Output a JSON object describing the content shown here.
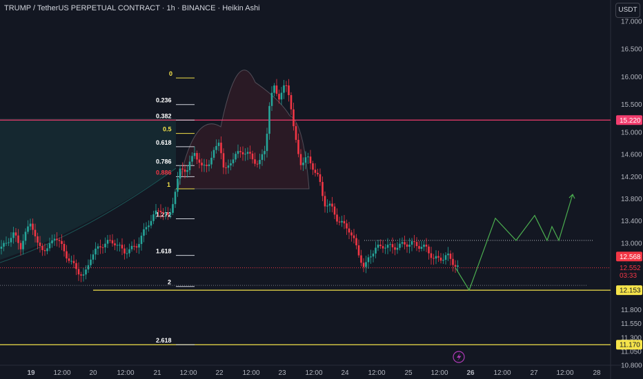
{
  "header": {
    "title": "TRUMP / TetherUS PERPETUAL CONTRACT · 1h · BINANCE · Heikin Ashi"
  },
  "currency": "USDT",
  "colors": {
    "background": "#131722",
    "up": "#26a69a",
    "down": "#f23645",
    "fib": "#f5e34a",
    "projection": "#4caf50",
    "resistance": "#f23d6e"
  },
  "chart_data": {
    "type": "candlestick",
    "ylim": [
      10.8,
      17.25
    ],
    "y_ticks": [
      17.0,
      16.5,
      16.0,
      15.5,
      15.0,
      14.6,
      14.2,
      13.8,
      13.4,
      13.0,
      12.6,
      12.2,
      11.8,
      11.55,
      11.3,
      11.05,
      10.8
    ],
    "y_tick_labels": [
      "17.000",
      "16.500",
      "16.000",
      "15.500",
      "15.000",
      "14.600",
      "14.200",
      "13.800",
      "13.400",
      "13.000",
      "12.600",
      "12.200",
      "11.800",
      "11.550",
      "11.300",
      "11.050",
      "10.800"
    ],
    "x_ticks": [
      {
        "label": "19",
        "bold": true,
        "x": 45
      },
      {
        "label": "12:00",
        "x": 90
      },
      {
        "label": "20",
        "x": 135
      },
      {
        "label": "12:00",
        "x": 182
      },
      {
        "label": "21",
        "x": 228
      },
      {
        "label": "12:00",
        "x": 273
      },
      {
        "label": "22",
        "x": 318
      },
      {
        "label": "12:00",
        "x": 364
      },
      {
        "label": "23",
        "x": 409
      },
      {
        "label": "12:00",
        "x": 455
      },
      {
        "label": "24",
        "x": 500
      },
      {
        "label": "12:00",
        "x": 546
      },
      {
        "label": "25",
        "x": 592
      },
      {
        "label": "12:00",
        "x": 637
      },
      {
        "label": "26",
        "bold": true,
        "x": 682
      },
      {
        "label": "12:00",
        "x": 728
      },
      {
        "label": "27",
        "x": 774
      },
      {
        "label": "12:00",
        "x": 819
      },
      {
        "label": "28",
        "x": 865
      }
    ],
    "price_path": [
      [
        0,
        12.9
      ],
      [
        20,
        13.1
      ],
      [
        30,
        12.9
      ],
      [
        45,
        13.45
      ],
      [
        55,
        13.0
      ],
      [
        70,
        12.9
      ],
      [
        80,
        13.1
      ],
      [
        95,
        12.75
      ],
      [
        108,
        12.6
      ],
      [
        122,
        12.45
      ],
      [
        132,
        12.8
      ],
      [
        145,
        12.9
      ],
      [
        165,
        13.0
      ],
      [
        180,
        12.9
      ],
      [
        200,
        13.0
      ],
      [
        215,
        13.3
      ],
      [
        232,
        13.6
      ],
      [
        245,
        13.5
      ],
      [
        252,
        13.9
      ],
      [
        262,
        14.4
      ],
      [
        272,
        14.3
      ],
      [
        282,
        14.6
      ],
      [
        292,
        14.3
      ],
      [
        305,
        14.5
      ],
      [
        318,
        14.95
      ],
      [
        325,
        14.3
      ],
      [
        335,
        14.5
      ],
      [
        350,
        14.6
      ],
      [
        362,
        14.55
      ],
      [
        375,
        14.45
      ],
      [
        385,
        14.8
      ],
      [
        390,
        15.5
      ],
      [
        397,
        15.85
      ],
      [
        405,
        15.6
      ],
      [
        414,
        15.8
      ],
      [
        420,
        15.6
      ],
      [
        427,
        14.9
      ],
      [
        435,
        14.45
      ],
      [
        445,
        14.6
      ],
      [
        455,
        14.4
      ],
      [
        462,
        14.2
      ],
      [
        470,
        13.7
      ],
      [
        480,
        13.6
      ],
      [
        490,
        13.35
      ],
      [
        505,
        13.3
      ],
      [
        515,
        13.05
      ],
      [
        522,
        12.8
      ],
      [
        528,
        12.55
      ],
      [
        535,
        12.75
      ],
      [
        545,
        12.85
      ],
      [
        555,
        12.9
      ],
      [
        570,
        12.95
      ],
      [
        585,
        13.05
      ],
      [
        598,
        13.0
      ],
      [
        608,
        12.9
      ],
      [
        618,
        12.85
      ],
      [
        628,
        12.7
      ],
      [
        638,
        12.75
      ],
      [
        648,
        12.85
      ],
      [
        656,
        12.7
      ],
      [
        665,
        12.56
      ]
    ],
    "projection": [
      [
        660,
        12.56
      ],
      [
        680,
        12.153
      ],
      [
        718,
        13.45
      ],
      [
        748,
        13.05
      ],
      [
        775,
        13.5
      ],
      [
        793,
        13.05
      ],
      [
        800,
        13.3
      ],
      [
        810,
        13.05
      ],
      [
        830,
        13.88
      ]
    ],
    "fib_levels": [
      {
        "label": "0",
        "price": 15.98,
        "x": 245,
        "color": "#f5e34a"
      },
      {
        "label": "0.236",
        "price": 15.5,
        "x": 226,
        "color": "#ffffff"
      },
      {
        "label": "0.382",
        "price": 15.22,
        "x": 226,
        "color": "#ffffff"
      },
      {
        "label": "0.5",
        "price": 14.98,
        "x": 236,
        "color": "#f5e34a"
      },
      {
        "label": "0.618",
        "price": 14.74,
        "x": 226,
        "color": "#ffffff"
      },
      {
        "label": "0.786",
        "price": 14.4,
        "x": 226,
        "color": "#ffffff"
      },
      {
        "label": "0.886",
        "price": 14.2,
        "x": 226,
        "color": "#f23645"
      },
      {
        "label": "1",
        "price": 13.98,
        "x": 242,
        "color": "#f5e34a"
      },
      {
        "label": "1.272",
        "price": 13.44,
        "x": 226,
        "color": "#ffffff"
      },
      {
        "label": "1.618",
        "price": 12.78,
        "x": 226,
        "color": "#ffffff"
      },
      {
        "label": "2",
        "price": 12.22,
        "x": 243,
        "color": "#ffffff"
      },
      {
        "label": "2.618",
        "price": 11.17,
        "x": 226,
        "color": "#ffffff"
      }
    ],
    "horizontal_lines": [
      {
        "price": 15.22,
        "color": "#f23d6e",
        "style": "solid"
      },
      {
        "price": 12.153,
        "color": "#f5e34a",
        "style": "solid"
      },
      {
        "price": 11.17,
        "color": "#f5e34a",
        "style": "solid"
      },
      {
        "price": 13.05,
        "color": "#b2b5be",
        "style": "dotted"
      },
      {
        "price": 12.24,
        "color": "#787b86",
        "style": "dotted"
      },
      {
        "price": 12.556,
        "color": "#f23645",
        "style": "dotted"
      }
    ],
    "price_labels": [
      {
        "text": "15.220",
        "price": 15.22,
        "bg": "#f23d6e",
        "fg": "#ffffff"
      },
      {
        "text": "12.568",
        "price": 12.76,
        "bg": "#f23645",
        "fg": "#ffffff"
      },
      {
        "text": "12.552",
        "price": 12.556,
        "bg": "#131722",
        "fg": "#f23645"
      },
      {
        "text": "03:33",
        "price": 12.42,
        "bg": "#131722",
        "fg": "#f23645"
      },
      {
        "text": "12.153",
        "price": 12.153,
        "bg": "#f5e34a",
        "fg": "#131722"
      },
      {
        "text": "11.170",
        "price": 11.17,
        "bg": "#f5e34a",
        "fg": "#131722"
      }
    ]
  }
}
